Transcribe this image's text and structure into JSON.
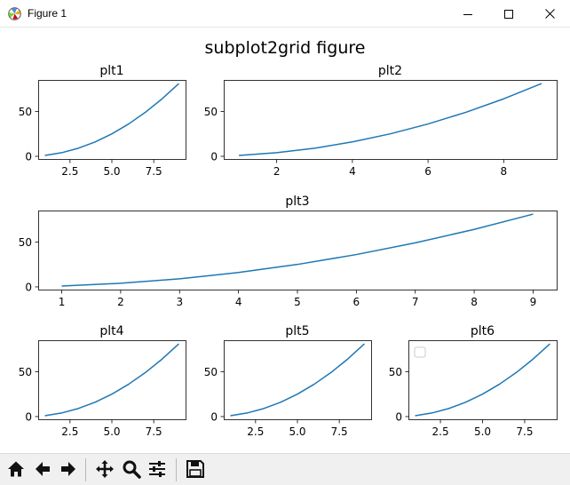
{
  "window": {
    "title": "Figure 1",
    "app_icon": "matplotlib-icon",
    "controls": [
      "minimize-icon",
      "maximize-icon",
      "close-icon"
    ]
  },
  "figure": {
    "suptitle": "subplot2grid figure"
  },
  "chart_data": [
    {
      "type": "line",
      "title": "plt1",
      "x": [
        1,
        2,
        3,
        4,
        5,
        6,
        7,
        8,
        9
      ],
      "series": [
        {
          "values": [
            1,
            4,
            9,
            16,
            25,
            36,
            49,
            64,
            81
          ]
        }
      ],
      "xticks": [
        2.5,
        5.0,
        7.5
      ],
      "xtick_labels": [
        "2.5",
        "5.0",
        "7.5"
      ],
      "yticks": [
        0,
        50
      ],
      "ytick_labels": [
        "0",
        "50"
      ],
      "xlim": [
        0.6,
        9.4
      ],
      "ylim": [
        -3,
        85
      ],
      "grid": false,
      "legend": "none"
    },
    {
      "type": "line",
      "title": "plt2",
      "x": [
        1,
        2,
        3,
        4,
        5,
        6,
        7,
        8,
        9
      ],
      "series": [
        {
          "values": [
            1,
            4,
            9,
            16,
            25,
            36,
            49,
            64,
            81
          ]
        }
      ],
      "xticks": [
        2,
        4,
        6,
        8
      ],
      "xtick_labels": [
        "2",
        "4",
        "6",
        "8"
      ],
      "yticks": [
        0,
        50
      ],
      "ytick_labels": [
        "0",
        "50"
      ],
      "xlim": [
        0.6,
        9.4
      ],
      "ylim": [
        -3,
        85
      ],
      "grid": false,
      "legend": "none"
    },
    {
      "type": "line",
      "title": "plt3",
      "x": [
        1,
        2,
        3,
        4,
        5,
        6,
        7,
        8,
        9
      ],
      "series": [
        {
          "values": [
            1,
            4,
            9,
            16,
            25,
            36,
            49,
            64,
            81
          ]
        }
      ],
      "xticks": [
        1,
        2,
        3,
        4,
        5,
        6,
        7,
        8,
        9
      ],
      "xtick_labels": [
        "1",
        "2",
        "3",
        "4",
        "5",
        "6",
        "7",
        "8",
        "9"
      ],
      "yticks": [
        0,
        50
      ],
      "ytick_labels": [
        "0",
        "50"
      ],
      "xlim": [
        0.6,
        9.4
      ],
      "ylim": [
        -3,
        85
      ],
      "grid": false,
      "legend": "none"
    },
    {
      "type": "line",
      "title": "plt4",
      "x": [
        1,
        2,
        3,
        4,
        5,
        6,
        7,
        8,
        9
      ],
      "series": [
        {
          "values": [
            1,
            4,
            9,
            16,
            25,
            36,
            49,
            64,
            81
          ]
        }
      ],
      "xticks": [
        2.5,
        5.0,
        7.5
      ],
      "xtick_labels": [
        "2.5",
        "5.0",
        "7.5"
      ],
      "yticks": [
        0,
        50
      ],
      "ytick_labels": [
        "0",
        "50"
      ],
      "xlim": [
        0.6,
        9.4
      ],
      "ylim": [
        -3,
        85
      ],
      "grid": false,
      "legend": "none"
    },
    {
      "type": "line",
      "title": "plt5",
      "x": [
        1,
        2,
        3,
        4,
        5,
        6,
        7,
        8,
        9
      ],
      "series": [
        {
          "values": [
            1,
            4,
            9,
            16,
            25,
            36,
            49,
            64,
            81
          ]
        }
      ],
      "xticks": [
        2.5,
        5.0,
        7.5
      ],
      "xtick_labels": [
        "2.5",
        "5.0",
        "7.5"
      ],
      "yticks": [
        0,
        50
      ],
      "ytick_labels": [
        "0",
        "50"
      ],
      "xlim": [
        0.6,
        9.4
      ],
      "ylim": [
        -3,
        85
      ],
      "grid": false,
      "legend": "none"
    },
    {
      "type": "line",
      "title": "plt6",
      "x": [
        1,
        2,
        3,
        4,
        5,
        6,
        7,
        8,
        9
      ],
      "series": [
        {
          "values": [
            1,
            4,
            9,
            16,
            25,
            36,
            49,
            64,
            81
          ]
        }
      ],
      "xticks": [
        2.5,
        5.0,
        7.5
      ],
      "xtick_labels": [
        "2.5",
        "5.0",
        "7.5"
      ],
      "yticks": [
        0,
        50
      ],
      "ytick_labels": [
        "0",
        "50"
      ],
      "xlim": [
        0.6,
        9.4
      ],
      "ylim": [
        -3,
        85
      ],
      "grid": false,
      "legend": "top-left",
      "legend_empty": true
    }
  ],
  "style": {
    "line_color": "#1f77b4",
    "axis_color": "#000000",
    "toolbar_bg": "#f0f0f0"
  },
  "toolbar": {
    "buttons": [
      {
        "id": "home",
        "icon": "home-icon"
      },
      {
        "id": "back",
        "icon": "back-arrow-icon"
      },
      {
        "id": "forward",
        "icon": "forward-arrow-icon"
      },
      {
        "id": "pan",
        "icon": "pan-icon"
      },
      {
        "id": "zoom",
        "icon": "zoom-icon"
      },
      {
        "id": "configure",
        "icon": "configure-subplots-icon"
      },
      {
        "id": "save",
        "icon": "save-icon"
      }
    ]
  }
}
